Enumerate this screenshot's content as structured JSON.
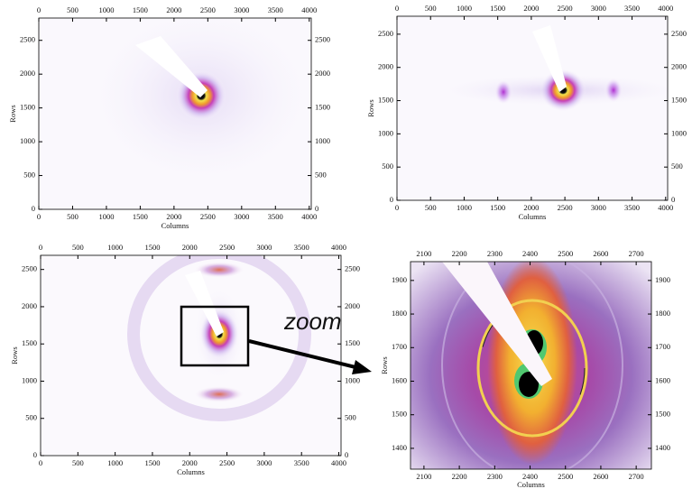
{
  "panels": [
    {
      "xlim": [
        0,
        4030
      ],
      "ylim": [
        0,
        2830
      ],
      "xticks": [
        0,
        500,
        1000,
        1500,
        2000,
        2500,
        3000,
        3500,
        4000
      ],
      "yticks": [
        0,
        500,
        1000,
        1500,
        2000,
        2500
      ],
      "xlabel": "Columns",
      "ylabel": "Rows"
    },
    {
      "xlim": [
        0,
        4030
      ],
      "ylim": [
        0,
        2770
      ],
      "xticks": [
        0,
        500,
        1000,
        1500,
        2000,
        2500,
        3000,
        3500,
        4000
      ],
      "yticks": [
        0,
        500,
        1000,
        1500,
        2000,
        2500
      ],
      "xlabel": "Columns",
      "ylabel": "Rows"
    },
    {
      "xlim": [
        0,
        4030
      ],
      "ylim": [
        0,
        2690
      ],
      "xticks": [
        0,
        500,
        1000,
        1500,
        2000,
        2500,
        3000,
        3500,
        4000
      ],
      "yticks": [
        0,
        500,
        1000,
        1500,
        2000,
        2500
      ],
      "xlabel": "Columns",
      "ylabel": "Rows"
    },
    {
      "xlim": [
        2062,
        2743
      ],
      "ylim": [
        1338,
        1956
      ],
      "xticks": [
        2100,
        2200,
        2300,
        2400,
        2500,
        2600,
        2700
      ],
      "yticks": [
        1400,
        1500,
        1600,
        1700,
        1800,
        1900
      ],
      "xlabel": "Columns",
      "ylabel": "Rows"
    }
  ],
  "annotation": "zoom"
}
